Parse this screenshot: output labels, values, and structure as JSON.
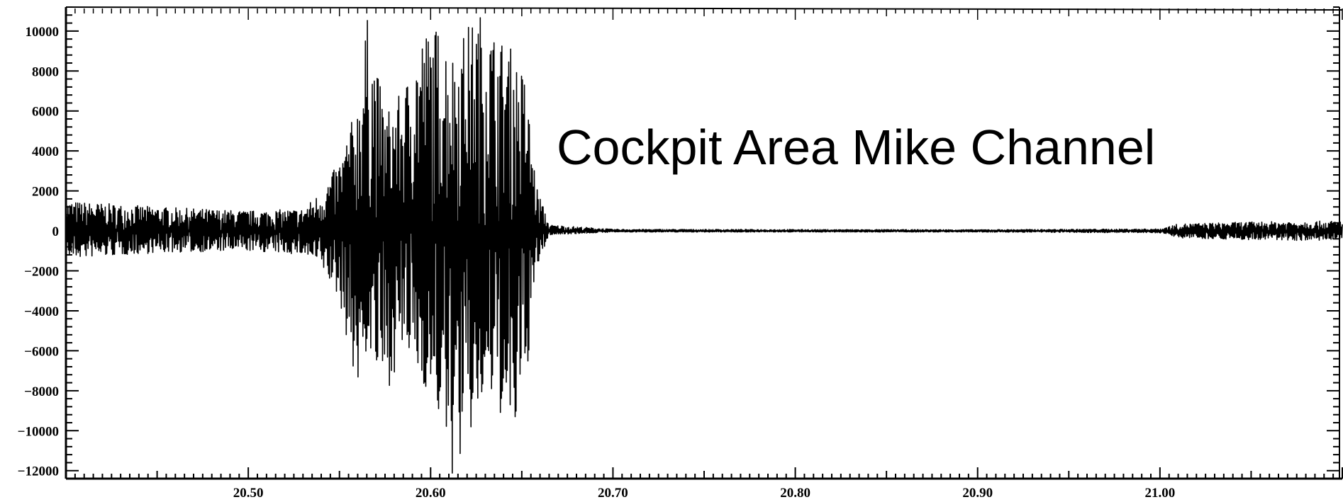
{
  "chart_data": {
    "type": "line",
    "title": "Cockpit Area Mike Channel",
    "xlabel": "",
    "ylabel": "",
    "xlim": [
      20.4,
      21.1
    ],
    "ylim": [
      -12400,
      11200
    ],
    "x_ticks": [
      20.5,
      20.6,
      20.7,
      20.8,
      20.9,
      21.0
    ],
    "x_tick_labels": [
      "20.50",
      "20.60",
      "20.70",
      "20.80",
      "20.90",
      "21.00"
    ],
    "y_ticks": [
      10000,
      8000,
      6000,
      4000,
      2000,
      0,
      -2000,
      -4000,
      -6000,
      -8000,
      -10000,
      -12000
    ],
    "y_tick_labels": [
      "10000",
      "8000",
      "6000",
      "4000",
      "2000",
      "0",
      "-2000",
      "-4000",
      "-6000",
      "-8000",
      "-10000",
      "-12000"
    ],
    "grid": false,
    "legend": "none",
    "series": [
      {
        "color": "#000000",
        "envelope": [
          {
            "x": 20.4,
            "max": 1500,
            "min": -1400
          },
          {
            "x": 20.45,
            "max": 1200,
            "min": -1100
          },
          {
            "x": 20.5,
            "max": 1000,
            "min": -1000
          },
          {
            "x": 20.53,
            "max": 1100,
            "min": -1200
          },
          {
            "x": 20.54,
            "max": 2000,
            "min": -1800
          },
          {
            "x": 20.55,
            "max": 3500,
            "min": -3500
          },
          {
            "x": 20.56,
            "max": 6500,
            "min": -8200
          },
          {
            "x": 20.565,
            "max": 10800,
            "min": -6000
          },
          {
            "x": 20.575,
            "max": 6000,
            "min": -8300
          },
          {
            "x": 20.585,
            "max": 7000,
            "min": -6000
          },
          {
            "x": 20.595,
            "max": 10000,
            "min": -7500
          },
          {
            "x": 20.605,
            "max": 10300,
            "min": -9500
          },
          {
            "x": 20.612,
            "max": 9000,
            "min": -12400
          },
          {
            "x": 20.62,
            "max": 10300,
            "min": -10800
          },
          {
            "x": 20.628,
            "max": 11000,
            "min": -9000
          },
          {
            "x": 20.636,
            "max": 9800,
            "min": -8500
          },
          {
            "x": 20.644,
            "max": 9200,
            "min": -11200
          },
          {
            "x": 20.652,
            "max": 7700,
            "min": -8000
          },
          {
            "x": 20.658,
            "max": 2300,
            "min": -2000
          },
          {
            "x": 20.665,
            "max": 300,
            "min": -200
          },
          {
            "x": 20.7,
            "max": 80,
            "min": -60
          },
          {
            "x": 20.9,
            "max": 60,
            "min": -60
          },
          {
            "x": 21.0,
            "max": 100,
            "min": -100
          },
          {
            "x": 21.01,
            "max": 350,
            "min": -350
          },
          {
            "x": 21.05,
            "max": 450,
            "min": -450
          },
          {
            "x": 21.1,
            "max": 500,
            "min": -500
          }
        ]
      }
    ],
    "annotations": [
      "Cockpit Area Mike Channel"
    ]
  }
}
